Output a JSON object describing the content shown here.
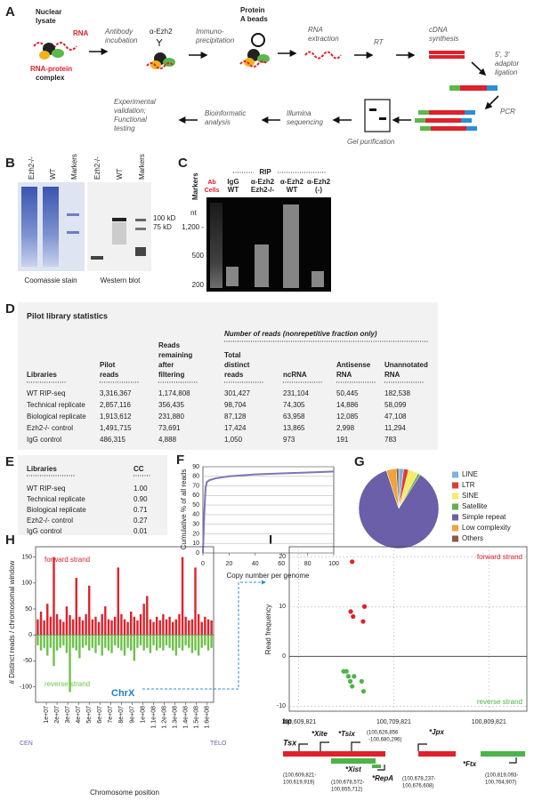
{
  "panel_labels": [
    "A",
    "B",
    "C",
    "D",
    "E",
    "F",
    "G",
    "H",
    "I"
  ],
  "workflow": {
    "lysate": [
      "Nuclear",
      "lysate"
    ],
    "rna": "RNA",
    "complex": [
      "RNA-protein",
      "complex"
    ],
    "antibody": [
      "Antibody",
      "incubation"
    ],
    "ab_name": "α-Ezh2",
    "ip": [
      "Immuno-",
      "precipitation"
    ],
    "beads": [
      "Protein",
      "A beads"
    ],
    "extraction": [
      "RNA",
      "extraction"
    ],
    "rt": "RT",
    "cdna": [
      "cDNA",
      "synthesis"
    ],
    "ligation": [
      "5', 3'",
      "adaptor",
      "ligation"
    ],
    "pcr": "PCR",
    "gel": "Gel purification",
    "sequencing": [
      "Illumina",
      "sequencing"
    ],
    "bioinf": [
      "Bioinformatic",
      "analysis"
    ],
    "validation": [
      "Experimental",
      "validation;",
      "Functional",
      "testing"
    ]
  },
  "gels_b": {
    "lanes": [
      "Ezh2-/-",
      "WT",
      "Markers",
      "Ezh2-/-",
      "WT",
      "Markers"
    ],
    "markers": [
      "100 kD",
      "75 kD"
    ],
    "captions": [
      "Coomassie stain",
      "Western blot"
    ]
  },
  "gel_c": {
    "markers": "Markers",
    "rip": "RIP",
    "row_heads": [
      "Ab",
      "Cells"
    ],
    "lanes": [
      [
        "IgG",
        "WT"
      ],
      [
        "α-Ezh2",
        "Ezh2-/-"
      ],
      [
        "α-Ezh2",
        "WT"
      ],
      [
        "α-Ezh2",
        "(-)"
      ]
    ],
    "unit": "nt",
    "sizes": [
      "1,200 -",
      "500",
      "200"
    ]
  },
  "table_d": {
    "title": "Pilot library statistics",
    "group_header": "Number of reads (nonrepetitive fraction only)",
    "columns": [
      [
        "Libraries"
      ],
      [
        "Pilot",
        "reads"
      ],
      [
        "Reads",
        "remaining",
        "after",
        "filtering"
      ],
      [
        "Total",
        "distinct",
        "reads"
      ],
      [
        "ncRNA"
      ],
      [
        "Antisense",
        "RNA"
      ],
      [
        "Unannotated",
        "RNA"
      ]
    ],
    "rows": [
      [
        "WT RIP-seq",
        "3,316,367",
        "1,174,808",
        "301,427",
        "231,104",
        "50,445",
        "182,538"
      ],
      [
        "Technical replicate",
        "2,857,116",
        "356,435",
        "98,704",
        "74,305",
        "14,886",
        "58,099"
      ],
      [
        "Biological replicate",
        "1,913,612",
        "231,880",
        "87,128",
        "63,958",
        "12,085",
        "47,108"
      ],
      [
        "Ezh2-/- control",
        "1,491,715",
        "73,691",
        "17,424",
        "13,865",
        "2,998",
        "11,294"
      ],
      [
        "IgG control",
        "486,315",
        "4,888",
        "1,050",
        "973",
        "191",
        "783"
      ]
    ]
  },
  "table_e": {
    "columns": [
      "Libraries",
      "CC"
    ],
    "rows": [
      [
        "WT RIP-seq",
        "1.00"
      ],
      [
        "Technical replicate",
        "0.90"
      ],
      [
        "Biological replicate",
        "0.71"
      ],
      [
        "Ezh2-/- control",
        "0.27"
      ],
      [
        "IgG control",
        "0.01"
      ]
    ]
  },
  "annotation_i": {
    "tsx": "Tsx",
    "tsx_coords": [
      "(100,609,821-",
      "100,619,919)"
    ],
    "xite": "*Xite",
    "tsix": "*Tsix",
    "tsix_coords": [
      "(100,626,856",
      "-100,680,296)"
    ],
    "jpx": "*Jpx",
    "xist": "*Xist",
    "xist_coords": [
      "(100,678,572-",
      "100,655,712)"
    ],
    "repa": "*RepA",
    "repa_coords": [
      "(100,678,237-",
      "100,676,608)"
    ],
    "ftx": "*Ftx",
    "ftx_coords": [
      "(100,819,093-",
      "100,764,907)"
    ]
  },
  "chart_data": [
    {
      "type": "line",
      "ylabel": "Cumulative % of all reads",
      "xlabel": "Copy number per genome",
      "x": [
        0,
        1,
        2,
        3,
        5,
        10,
        20,
        40,
        60,
        80,
        100
      ],
      "values": [
        0,
        40,
        68,
        74,
        76,
        78,
        80,
        82,
        83,
        84,
        85
      ],
      "color": "#7b76b8",
      "xlim": [
        0,
        100
      ],
      "ylim": [
        0,
        90
      ],
      "xticks": [
        0,
        20,
        40,
        60,
        80,
        100
      ],
      "yticks": [
        0,
        10,
        20,
        30,
        40,
        50,
        60,
        70,
        80,
        90
      ],
      "grid": true
    },
    {
      "type": "pie",
      "categories": [
        "LINE",
        "LTR",
        "SINE",
        "Satellite",
        "Simple repeat",
        "Low complexity",
        "Others"
      ],
      "values": [
        2,
        2,
        4,
        1,
        86,
        4,
        1
      ],
      "colors": [
        "#7fb2dc",
        "#e03c31",
        "#f5ec6a",
        "#63b04b",
        "#6a5fa8",
        "#f1a33a",
        "#8a5a4a"
      ]
    },
    {
      "type": "bar",
      "ylabel": "# Distinct reads / chromosomal window",
      "xlabel": "Chromosome position",
      "annotations": [
        "ChrX",
        "CEN",
        "TELO"
      ],
      "x": [
        2000000,
        5000000,
        8000000,
        11000000,
        14000000,
        17000000,
        20000000,
        23000000,
        26000000,
        29000000,
        32000000,
        35000000,
        38000000,
        41000000,
        44000000,
        47000000,
        50000000,
        53000000,
        56000000,
        59000000,
        62000000,
        65000000,
        68000000,
        71000000,
        74000000,
        77000000,
        80000000,
        83000000,
        86000000,
        89000000,
        92000000,
        95000000,
        98000000,
        101000000,
        104000000,
        107000000,
        110000000,
        113000000,
        116000000,
        119000000,
        122000000,
        125000000,
        128000000,
        131000000,
        134000000,
        137000000,
        140000000,
        143000000,
        146000000,
        149000000,
        152000000,
        155000000,
        158000000,
        161000000,
        164000000
      ],
      "series": [
        {
          "name": "forward strand",
          "color": "#e0202a",
          "values": [
            30,
            45,
            28,
            60,
            35,
            150,
            40,
            30,
            25,
            55,
            38,
            30,
            110,
            35,
            28,
            40,
            95,
            30,
            35,
            25,
            40,
            55,
            30,
            28,
            35,
            130,
            40,
            30,
            25,
            45,
            35,
            28,
            40,
            60,
            75,
            30,
            25,
            35,
            28,
            40,
            30,
            35,
            25,
            30,
            40,
            150,
            35,
            28,
            30,
            130,
            40,
            25,
            35,
            30,
            28
          ]
        },
        {
          "name": "reverse strand",
          "color": "#6cc24a",
          "values": [
            -20,
            -30,
            -25,
            -40,
            -25,
            -60,
            -30,
            -25,
            -20,
            -35,
            -110,
            -25,
            -30,
            -45,
            -25,
            -20,
            -30,
            -25,
            -35,
            -20,
            -40,
            -25,
            -30,
            -35,
            -20,
            -25,
            -30,
            -40,
            -25,
            -30,
            -50,
            -25,
            -20,
            -30,
            -25,
            -35,
            -20,
            -30,
            -25,
            -30,
            -20,
            -25,
            -30,
            -40,
            -25,
            -30,
            -20,
            -25,
            -35,
            -30,
            -40,
            -25,
            -20,
            -30,
            -25
          ]
        }
      ],
      "xlim": [
        0,
        166000000
      ],
      "ylim": [
        -130,
        170
      ],
      "yticks": [
        -100,
        -50,
        0,
        50,
        100,
        150
      ],
      "xticks": [
        {
          "value": 10000000,
          "label": "1e+07"
        },
        {
          "value": 20000000,
          "label": "2e+07"
        },
        {
          "value": 30000000,
          "label": "3e+07"
        },
        {
          "value": 40000000,
          "label": "4e+07"
        },
        {
          "value": 50000000,
          "label": "5e+07"
        },
        {
          "value": 60000000,
          "label": "6e+07"
        },
        {
          "value": 70000000,
          "label": "7e+07"
        },
        {
          "value": 80000000,
          "label": "8e+07"
        },
        {
          "value": 90000000,
          "label": "9e+07"
        },
        {
          "value": 100000000,
          "label": "1e+08"
        },
        {
          "value": 110000000,
          "label": "1.1e+08"
        },
        {
          "value": 120000000,
          "label": "1.2e+08"
        },
        {
          "value": 130000000,
          "label": "1.3e+08"
        },
        {
          "value": 140000000,
          "label": "1.4e+08"
        },
        {
          "value": 150000000,
          "label": "1.5e+08"
        },
        {
          "value": 160000000,
          "label": "1.6e+08"
        }
      ]
    },
    {
      "type": "scatter",
      "ylabel": "Read frequency",
      "xlabel": "bp",
      "series": [
        {
          "name": "forward strand",
          "color": "#e0202a",
          "x": [
            100666000,
            100664500,
            100667000,
            100679000,
            100677500
          ],
          "values": [
            19,
            9,
            8,
            10,
            7
          ]
        },
        {
          "name": "reverse strand",
          "color": "#4db34a",
          "x": [
            100657000,
            100660000,
            100662000,
            100664000,
            100666000,
            100668000,
            100676000,
            100678000
          ],
          "values": [
            -3,
            -3,
            -4,
            -5,
            -6,
            -4,
            -5,
            -7
          ]
        }
      ],
      "xlim": [
        100599821,
        100849821
      ],
      "ylim": [
        -11,
        22
      ],
      "yticks": [
        -10,
        0,
        10,
        20
      ],
      "xticks": [
        {
          "value": 100609821,
          "label": "100,609,821"
        },
        {
          "value": 100709821,
          "label": "100,709,821"
        },
        {
          "value": 100809821,
          "label": "100,809,821"
        }
      ],
      "grid": true
    }
  ]
}
